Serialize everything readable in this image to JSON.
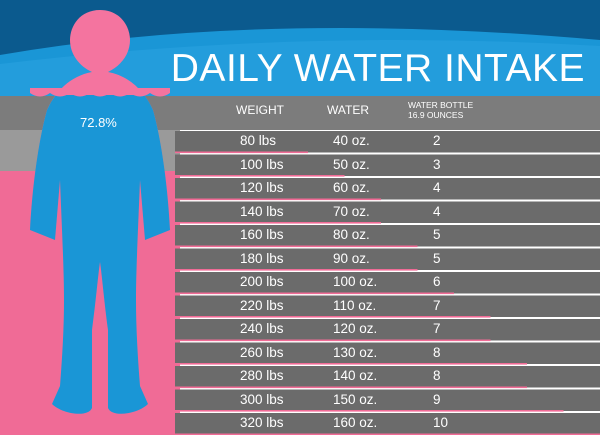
{
  "title": "DAILY WATER INTAKE",
  "figure": {
    "percent_label": "72.8%"
  },
  "headers": {
    "weight": "WEIGHT",
    "water": "WATER",
    "bottle_line1": "WATER BOTTLE",
    "bottle_line2": "16.9 OUNCES"
  },
  "rows": [
    {
      "weight": "80 lbs",
      "water": "40 oz.",
      "bottles": "2",
      "bottles_value": 2
    },
    {
      "weight": "100 lbs",
      "water": "50 oz.",
      "bottles": "3",
      "bottles_value": 3
    },
    {
      "weight": "120 lbs",
      "water": "60 oz.",
      "bottles": "4",
      "bottles_value": 4
    },
    {
      "weight": "140 lbs",
      "water": "70 oz.",
      "bottles": "4",
      "bottles_value": 4
    },
    {
      "weight": "160 lbs",
      "water": "80 oz.",
      "bottles": "5",
      "bottles_value": 5
    },
    {
      "weight": "180 lbs",
      "water": "90 oz.",
      "bottles": "5",
      "bottles_value": 5
    },
    {
      "weight": "200 lbs",
      "water": "100 oz.",
      "bottles": "6",
      "bottles_value": 6
    },
    {
      "weight": "220 lbs",
      "water": "110 oz.",
      "bottles": "7",
      "bottles_value": 7
    },
    {
      "weight": "240 lbs",
      "water": "120 oz.",
      "bottles": "7",
      "bottles_value": 7
    },
    {
      "weight": "260 lbs",
      "water": "130 oz.",
      "bottles": "8",
      "bottles_value": 8
    },
    {
      "weight": "280 lbs",
      "water": "140 oz.",
      "bottles": "8",
      "bottles_value": 8
    },
    {
      "weight": "300 lbs",
      "water": "150 oz.",
      "bottles": "9",
      "bottles_value": 9
    },
    {
      "weight": "320 lbs",
      "water": "160 oz.",
      "bottles": "10",
      "bottles_value": 10
    }
  ],
  "colors": {
    "dark_blue": "#0b5a8e",
    "blue": "#1a96d6",
    "light_blue": "#48afe6",
    "pink": "#f06b96",
    "pink_figure": "#f4749f",
    "gray_band": "#7c7c7c",
    "row_gray": "#6b6b6b",
    "white": "#ffffff"
  }
}
